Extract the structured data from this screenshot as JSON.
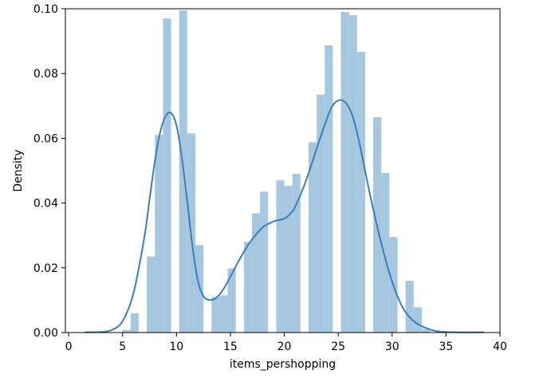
{
  "chart_data": {
    "type": "bar",
    "title": "",
    "xlabel": "items_pershopping",
    "ylabel": "Density",
    "xlim": [
      -0.3,
      40
    ],
    "ylim": [
      0,
      0.1
    ],
    "grid": false,
    "xticks": [
      0,
      5,
      10,
      15,
      20,
      25,
      30,
      35,
      40
    ],
    "yticks": [
      0.0,
      0.02,
      0.04,
      0.06,
      0.08,
      0.1
    ],
    "xtick_labels": [
      "0",
      "5",
      "10",
      "15",
      "20",
      "25",
      "30",
      "35",
      "40"
    ],
    "ytick_labels": [
      "0.00",
      "0.02",
      "0.04",
      "0.06",
      "0.08",
      "0.10"
    ],
    "bar_color": "#a6c7e0",
    "line_color": "#3a7fb8",
    "histogram": {
      "bins": [
        {
          "x0": 5.0,
          "x1": 5.75,
          "value": 0.0008
        },
        {
          "x0": 5.75,
          "x1": 6.5,
          "value": 0.006
        },
        {
          "x0": 7.25,
          "x1": 8.0,
          "value": 0.0235
        },
        {
          "x0": 8.0,
          "x1": 8.75,
          "value": 0.061
        },
        {
          "x0": 8.75,
          "x1": 9.5,
          "value": 0.097
        },
        {
          "x0": 10.25,
          "x1": 11.0,
          "value": 0.0995
        },
        {
          "x0": 11.0,
          "x1": 11.75,
          "value": 0.0615
        },
        {
          "x0": 11.75,
          "x1": 12.5,
          "value": 0.027
        },
        {
          "x0": 13.25,
          "x1": 14.0,
          "value": 0.011
        },
        {
          "x0": 14.0,
          "x1": 14.75,
          "value": 0.0115
        },
        {
          "x0": 14.75,
          "x1": 15.5,
          "value": 0.0198
        },
        {
          "x0": 16.25,
          "x1": 17.0,
          "value": 0.028
        },
        {
          "x0": 17.0,
          "x1": 17.75,
          "value": 0.0368
        },
        {
          "x0": 17.75,
          "x1": 18.5,
          "value": 0.0435
        },
        {
          "x0": 19.25,
          "x1": 20.0,
          "value": 0.047
        },
        {
          "x0": 20.0,
          "x1": 20.75,
          "value": 0.0453
        },
        {
          "x0": 20.75,
          "x1": 21.5,
          "value": 0.049
        },
        {
          "x0": 22.25,
          "x1": 23.0,
          "value": 0.0588
        },
        {
          "x0": 23.0,
          "x1": 23.75,
          "value": 0.0735
        },
        {
          "x0": 23.75,
          "x1": 24.5,
          "value": 0.0887
        },
        {
          "x0": 25.25,
          "x1": 26.0,
          "value": 0.099
        },
        {
          "x0": 26.0,
          "x1": 26.75,
          "value": 0.098
        },
        {
          "x0": 26.75,
          "x1": 27.5,
          "value": 0.0867
        },
        {
          "x0": 28.25,
          "x1": 29.0,
          "value": 0.0665
        },
        {
          "x0": 29.0,
          "x1": 29.75,
          "value": 0.0493
        },
        {
          "x0": 29.75,
          "x1": 30.5,
          "value": 0.0295
        },
        {
          "x0": 31.25,
          "x1": 32.0,
          "value": 0.016
        },
        {
          "x0": 32.0,
          "x1": 32.75,
          "value": 0.0078
        },
        {
          "x0": 32.75,
          "x1": 33.5,
          "value": 0.0012
        }
      ]
    },
    "kde": {
      "x": [
        1.5,
        3,
        4,
        5,
        6,
        7,
        7.5,
        8,
        8.5,
        9,
        9.5,
        10,
        10.5,
        11,
        11.5,
        12,
        12.5,
        13,
        13.5,
        14,
        14.5,
        15,
        16,
        17,
        18,
        19,
        20,
        20.5,
        21,
        22,
        23,
        24,
        24.5,
        25,
        25.5,
        26,
        26.5,
        27,
        28,
        29,
        30,
        31,
        32,
        33,
        34,
        35,
        36,
        37,
        38.5
      ],
      "y": [
        0.0001,
        0.0002,
        0.0008,
        0.0035,
        0.012,
        0.029,
        0.041,
        0.053,
        0.062,
        0.0668,
        0.0678,
        0.064,
        0.054,
        0.0405,
        0.0262,
        0.0158,
        0.0112,
        0.0101,
        0.0103,
        0.0118,
        0.0142,
        0.0172,
        0.0235,
        0.0287,
        0.0325,
        0.0343,
        0.0352,
        0.0365,
        0.0388,
        0.0468,
        0.0568,
        0.0665,
        0.0702,
        0.0717,
        0.0715,
        0.0695,
        0.065,
        0.058,
        0.0418,
        0.0275,
        0.0157,
        0.0076,
        0.0035,
        0.0016,
        0.0005,
        0.0002,
        0.0001,
        5e-05,
        0.0001
      ]
    }
  }
}
